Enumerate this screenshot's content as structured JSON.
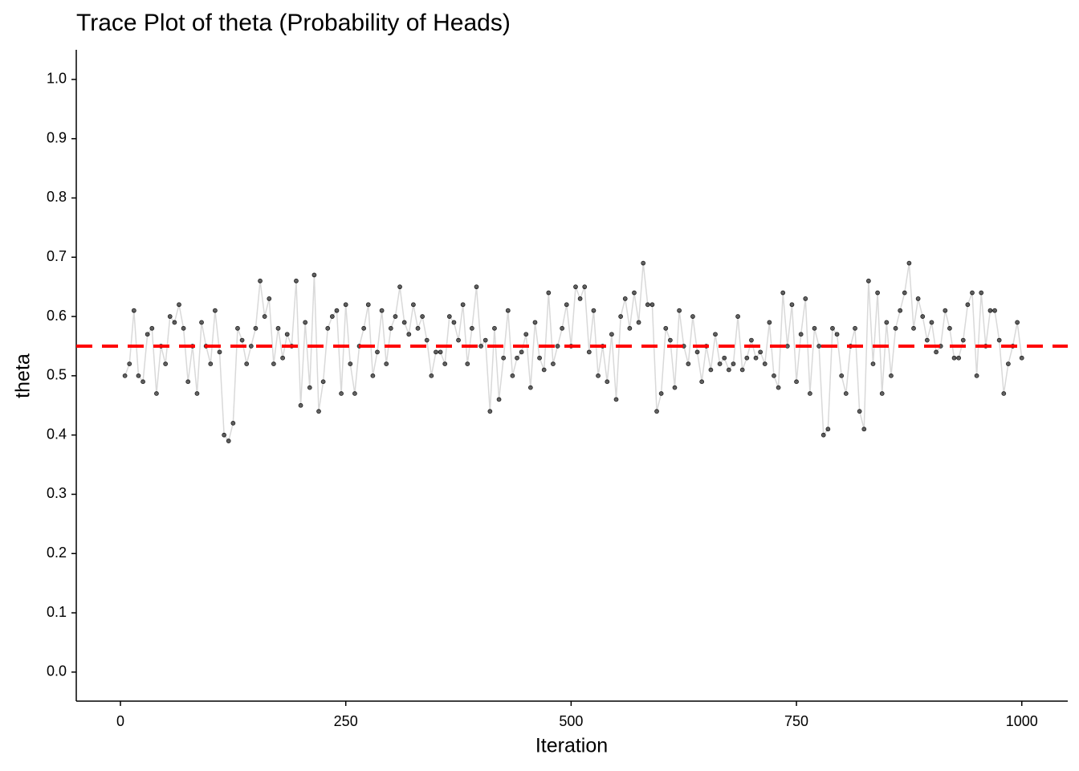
{
  "chart_data": {
    "type": "trace",
    "title": "Trace Plot of theta (Probability of Heads)",
    "x_label": "Iteration",
    "y_label": "theta",
    "x": [
      5,
      10,
      15,
      20,
      25,
      30,
      35,
      40,
      45,
      50,
      55,
      60,
      65,
      70,
      75,
      80,
      85,
      90,
      95,
      100,
      105,
      110,
      115,
      120,
      125,
      130,
      135,
      140,
      145,
      150,
      155,
      160,
      165,
      170,
      175,
      180,
      185,
      190,
      195,
      200,
      205,
      210,
      215,
      220,
      225,
      230,
      235,
      240,
      245,
      250,
      255,
      260,
      265,
      270,
      275,
      280,
      285,
      290,
      295,
      300,
      305,
      310,
      315,
      320,
      325,
      330,
      335,
      340,
      345,
      350,
      355,
      360,
      365,
      370,
      375,
      380,
      385,
      390,
      395,
      400,
      405,
      410,
      415,
      420,
      425,
      430,
      435,
      440,
      445,
      450,
      455,
      460,
      465,
      470,
      475,
      480,
      485,
      490,
      495,
      500,
      505,
      510,
      515,
      520,
      525,
      530,
      535,
      540,
      545,
      550,
      555,
      560,
      565,
      570,
      575,
      580,
      585,
      590,
      595,
      600,
      605,
      610,
      615,
      620,
      625,
      630,
      635,
      640,
      645,
      650,
      655,
      660,
      665,
      670,
      675,
      680,
      685,
      690,
      695,
      700,
      705,
      710,
      715,
      720,
      725,
      730,
      735,
      740,
      745,
      750,
      755,
      760,
      765,
      770,
      775,
      780,
      785,
      790,
      795,
      800,
      805,
      810,
      815,
      820,
      825,
      830,
      835,
      840,
      845,
      850,
      855,
      860,
      865,
      870,
      875,
      880,
      885,
      890,
      895,
      900,
      905,
      910,
      915,
      920,
      925,
      930,
      935,
      940,
      945,
      950,
      955,
      960,
      965,
      970,
      975,
      980,
      985,
      990,
      995,
      1000
    ],
    "values": [
      0.5,
      0.52,
      0.61,
      0.5,
      0.49,
      0.57,
      0.58,
      0.47,
      0.55,
      0.52,
      0.6,
      0.59,
      0.62,
      0.58,
      0.49,
      0.55,
      0.47,
      0.59,
      0.55,
      0.52,
      0.61,
      0.54,
      0.4,
      0.39,
      0.42,
      0.58,
      0.56,
      0.52,
      0.55,
      0.58,
      0.66,
      0.6,
      0.63,
      0.52,
      0.58,
      0.53,
      0.57,
      0.55,
      0.66,
      0.45,
      0.59,
      0.48,
      0.67,
      0.44,
      0.49,
      0.58,
      0.6,
      0.61,
      0.47,
      0.62,
      0.52,
      0.47,
      0.55,
      0.58,
      0.62,
      0.5,
      0.54,
      0.61,
      0.52,
      0.58,
      0.6,
      0.65,
      0.59,
      0.57,
      0.62,
      0.58,
      0.6,
      0.56,
      0.5,
      0.54,
      0.54,
      0.52,
      0.6,
      0.59,
      0.56,
      0.62,
      0.52,
      0.58,
      0.65,
      0.55,
      0.56,
      0.44,
      0.58,
      0.46,
      0.53,
      0.61,
      0.5,
      0.53,
      0.54,
      0.57,
      0.48,
      0.59,
      0.53,
      0.51,
      0.64,
      0.52,
      0.55,
      0.58,
      0.62,
      0.55,
      0.65,
      0.63,
      0.65,
      0.54,
      0.61,
      0.5,
      0.55,
      0.49,
      0.57,
      0.46,
      0.6,
      0.63,
      0.58,
      0.64,
      0.59,
      0.69,
      0.62,
      0.62,
      0.44,
      0.47,
      0.58,
      0.56,
      0.48,
      0.61,
      0.55,
      0.52,
      0.6,
      0.54,
      0.49,
      0.55,
      0.51,
      0.57,
      0.52,
      0.53,
      0.51,
      0.52,
      0.6,
      0.51,
      0.53,
      0.56,
      0.53,
      0.54,
      0.52,
      0.59,
      0.5,
      0.48,
      0.64,
      0.55,
      0.62,
      0.49,
      0.57,
      0.63,
      0.47,
      0.58,
      0.55,
      0.4,
      0.41,
      0.58,
      0.57,
      0.5,
      0.47,
      0.55,
      0.58,
      0.44,
      0.41,
      0.66,
      0.52,
      0.64,
      0.47,
      0.59,
      0.5,
      0.58,
      0.61,
      0.64,
      0.69,
      0.58,
      0.63,
      0.6,
      0.56,
      0.59,
      0.54,
      0.55,
      0.61,
      0.58,
      0.53,
      0.53,
      0.56,
      0.62,
      0.64,
      0.5,
      0.64,
      0.55,
      0.61,
      0.61,
      0.56,
      0.47,
      0.52,
      0.55,
      0.59,
      0.53
    ],
    "line_color": "#d9d9d9",
    "point_color": "#000000",
    "hline": 0.55,
    "hline_color": "#ff0000",
    "xlim": [
      -49,
      1051
    ],
    "ylim": [
      -0.049,
      1.05
    ],
    "xticks": [
      0,
      250,
      500,
      750,
      1000
    ],
    "yticks": [
      {
        "value": 0,
        "label": "0.0"
      },
      0.1,
      0.2,
      0.3,
      0.4,
      0.5,
      0.6,
      0.7,
      0.8,
      0.9,
      {
        "value": 1,
        "label": "1.0"
      }
    ]
  }
}
